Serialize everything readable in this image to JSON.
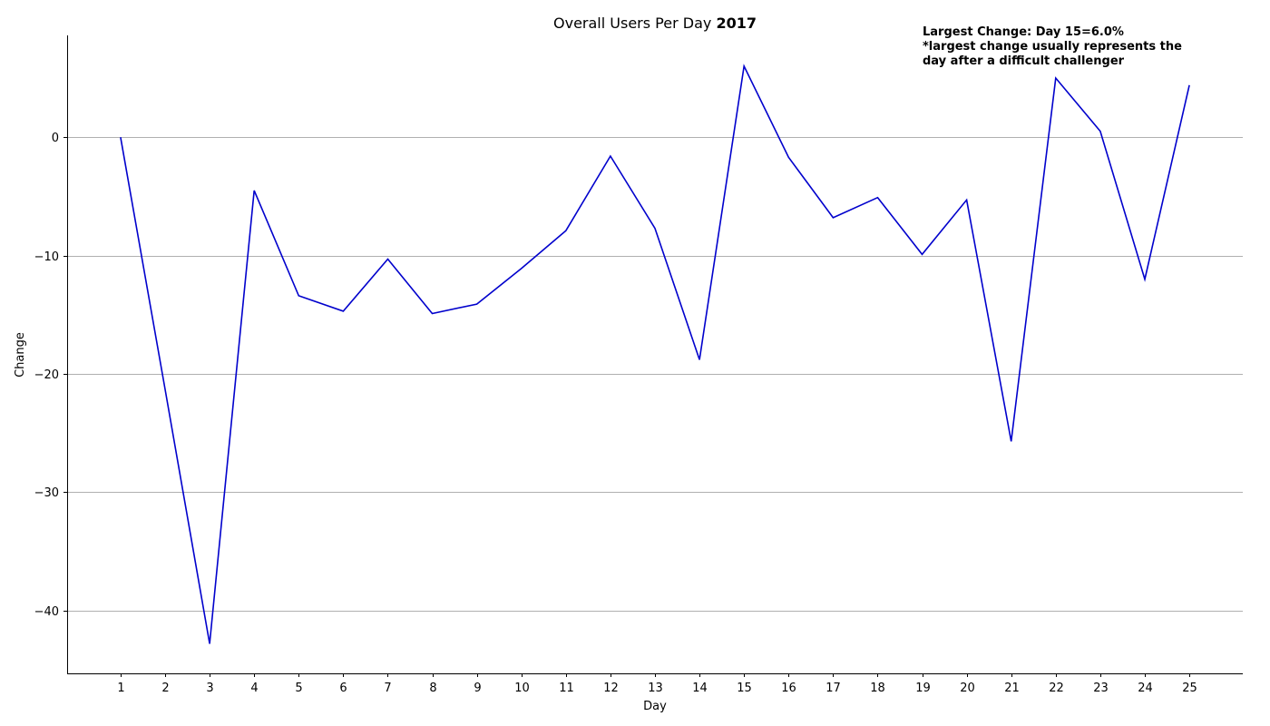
{
  "chart_data": {
    "type": "line",
    "title": "Overall Users Per Day",
    "title_year": "2017",
    "xlabel": "Day",
    "ylabel": "Change",
    "x": [
      1,
      2,
      3,
      4,
      5,
      6,
      7,
      8,
      9,
      10,
      11,
      12,
      13,
      14,
      15,
      16,
      17,
      18,
      19,
      20,
      21,
      22,
      23,
      24,
      25
    ],
    "x_tick_labels": [
      "1",
      "2",
      "3",
      "4",
      "5",
      "6",
      "7",
      "8",
      "9",
      "10",
      "11",
      "12",
      "13",
      "14",
      "15",
      "16",
      "17",
      "18",
      "19",
      "20",
      "21",
      "22",
      "23",
      "24",
      "25"
    ],
    "y_ticks": [
      0,
      -10,
      -20,
      -30,
      -40
    ],
    "y_tick_labels": [
      "0",
      "−10",
      "−20",
      "−30",
      "−40"
    ],
    "ylim": [
      -45.3,
      8.6
    ],
    "xlim": [
      -0.2,
      26.2
    ],
    "grid": "horizontal",
    "series": [
      {
        "color": "#0000cc",
        "values": [
          0.0,
          -21.3,
          -42.8,
          -4.5,
          -13.4,
          -14.7,
          -10.3,
          -14.9,
          -14.1,
          -11.1,
          -7.9,
          -1.6,
          -7.7,
          -18.8,
          6.0,
          -1.7,
          -6.8,
          -5.1,
          -9.9,
          -5.3,
          -25.7,
          5.0,
          0.5,
          -12.0,
          4.4
        ]
      }
    ],
    "annotations": [
      "Largest Change: Day 15=6.0%",
      "*largest change usually represents the",
      "day after a difficult challenger"
    ]
  }
}
